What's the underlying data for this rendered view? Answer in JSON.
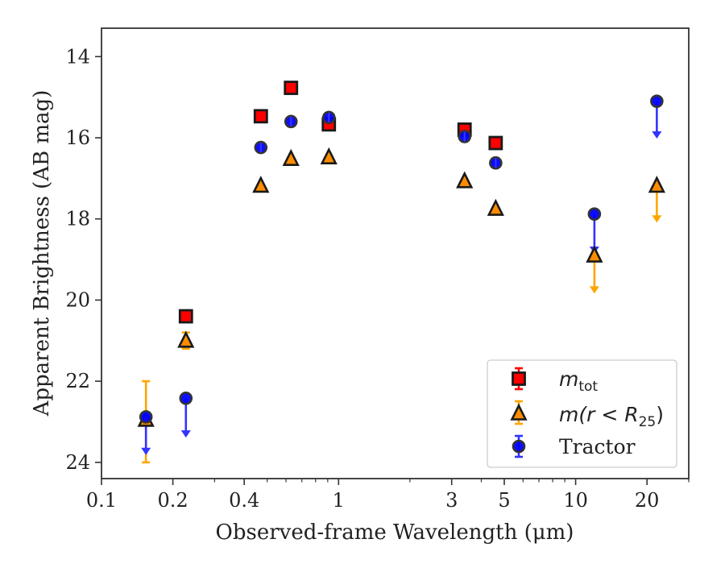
{
  "chart_data": {
    "type": "scatter",
    "xlabel": "Observed-frame Wavelength (μm)",
    "ylabel": "Apparent Brightness (AB mag)",
    "xscale": "log",
    "xlim": [
      0.1,
      30
    ],
    "ylim": [
      24.4,
      13.3
    ],
    "y_inverted": true,
    "x_ticks": [
      {
        "value": 0.1,
        "label": "0.1"
      },
      {
        "value": 0.2,
        "label": "0.2"
      },
      {
        "value": 0.4,
        "label": "0.4"
      },
      {
        "value": 1,
        "label": "1"
      },
      {
        "value": 3,
        "label": "3"
      },
      {
        "value": 5,
        "label": "5"
      },
      {
        "value": 10,
        "label": "10"
      },
      {
        "value": 20,
        "label": "20"
      }
    ],
    "y_ticks": [
      {
        "value": 14,
        "label": "14"
      },
      {
        "value": 16,
        "label": "16"
      },
      {
        "value": 18,
        "label": "18"
      },
      {
        "value": 20,
        "label": "20"
      },
      {
        "value": 22,
        "label": "22"
      },
      {
        "value": 24,
        "label": "24"
      }
    ],
    "grid": false,
    "legend_position": "bottom-right",
    "series": [
      {
        "name_parts": [
          "m",
          "tot"
        ],
        "marker": "square",
        "color": "#ff0000",
        "edge_color": "#1a1a1a",
        "points": [
          {
            "x": 0.227,
            "y": 20.4,
            "err": 0.1
          },
          {
            "x": 0.47,
            "y": 15.47,
            "err": 0.05
          },
          {
            "x": 0.63,
            "y": 14.77,
            "err": 0.05
          },
          {
            "x": 0.91,
            "y": 15.67,
            "err": 0.05
          },
          {
            "x": 3.4,
            "y": 15.8,
            "err": 0.05
          },
          {
            "x": 4.6,
            "y": 16.13,
            "err": 0.05
          }
        ]
      },
      {
        "name_parts": [
          "m(r < R",
          "25",
          ")"
        ],
        "marker": "triangle",
        "color": "#ff8c00",
        "edge_color": "#1a1a1a",
        "error_color": "#ffa500",
        "points": [
          {
            "x": 0.154,
            "y": 22.95,
            "err_low": 0.95,
            "err_high": 1.05
          },
          {
            "x": 0.227,
            "y": 21.0,
            "err": 0.2
          },
          {
            "x": 0.47,
            "y": 17.18
          },
          {
            "x": 0.63,
            "y": 16.52
          },
          {
            "x": 0.91,
            "y": 16.48
          },
          {
            "x": 3.4,
            "y": 17.07
          },
          {
            "x": 4.6,
            "y": 17.75
          },
          {
            "x": 12,
            "y": 18.9,
            "upper_limit_to": 19.8
          },
          {
            "x": 22,
            "y": 17.18,
            "upper_limit_to": 18.05
          }
        ]
      },
      {
        "name": "Tractor",
        "marker": "circle",
        "color": "#0000ff",
        "edge_color": "#333333",
        "error_color": "#3333ff",
        "points": [
          {
            "x": 0.154,
            "y": 22.88,
            "upper_limit_to": 23.78
          },
          {
            "x": 0.227,
            "y": 22.42,
            "upper_limit_to": 23.35
          },
          {
            "x": 0.47,
            "y": 16.24
          },
          {
            "x": 0.63,
            "y": 15.6
          },
          {
            "x": 0.91,
            "y": 15.5
          },
          {
            "x": 3.4,
            "y": 15.97
          },
          {
            "x": 4.6,
            "y": 16.62
          },
          {
            "x": 12,
            "y": 17.88,
            "upper_limit_to": 18.82
          },
          {
            "x": 22,
            "y": 15.1,
            "upper_limit_to": 15.98
          }
        ]
      }
    ]
  }
}
